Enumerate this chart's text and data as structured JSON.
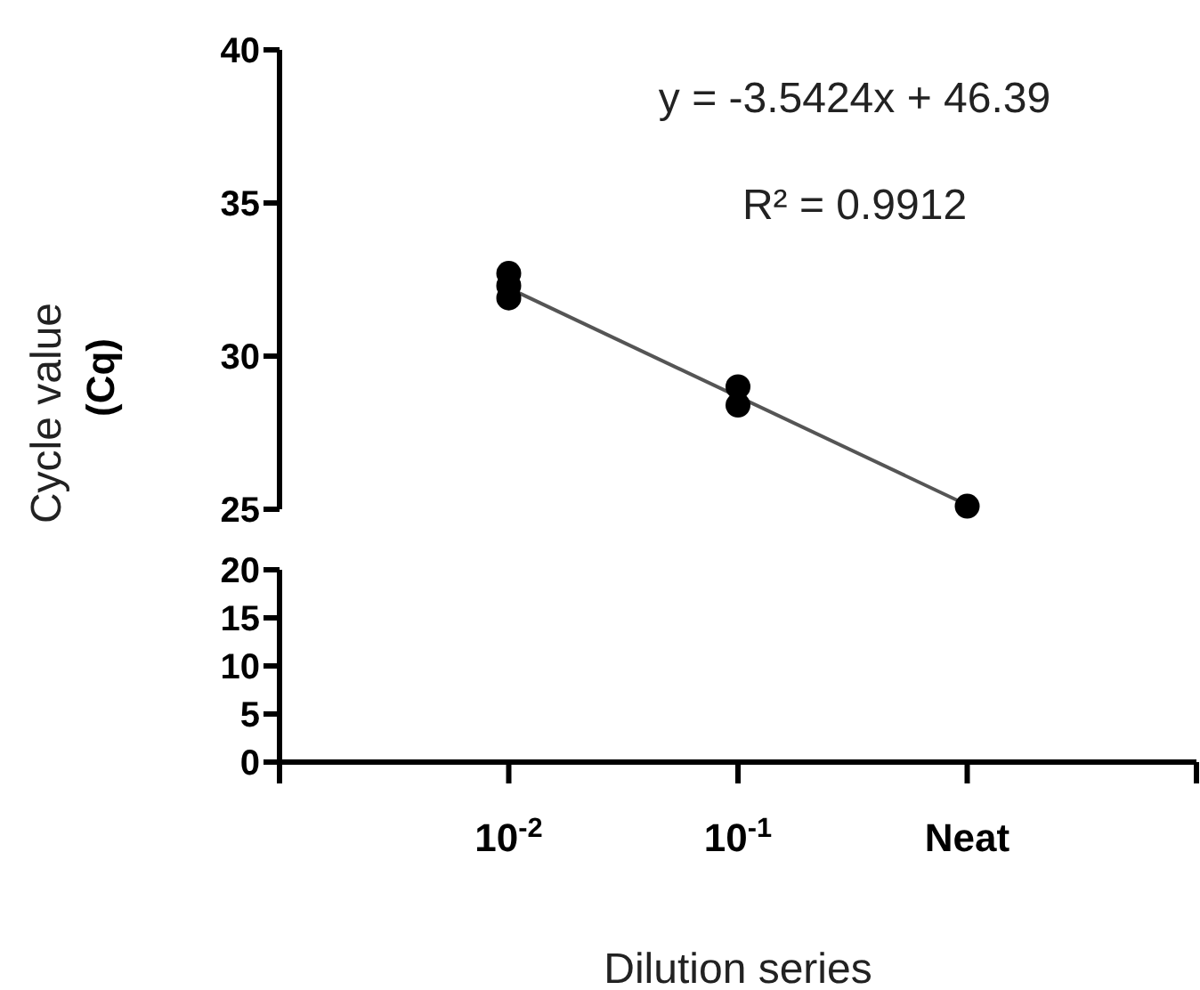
{
  "chart_data": [
    {
      "type": "scatter",
      "categories": [
        null,
        "10$^{-2}$",
        "10$^{-1}$",
        "Neat",
        null
      ],
      "ylim": [
        25,
        40
      ],
      "yticks": [
        25,
        30,
        35,
        40
      ],
      "tick_labels": "y",
      "marker": "circle",
      "grid": false,
      "legend": false,
      "annotations": [
        "y = -3.5424x + 46.39",
        "R² = 0.9912"
      ],
      "series": [
        {
          "type": "scatter",
          "color": "#000000",
          "x": [
            "10$^{-2}$",
            "10$^{-2}$",
            "10$^{-2}$",
            "10$^{-1}$",
            "10$^{-1}$",
            "Neat"
          ],
          "values": [
            32.7,
            32.3,
            31.9,
            29.0,
            28.4,
            25.1
          ]
        },
        {
          "type": "line",
          "color": "#555555",
          "marker": "none",
          "x": [
            "10$^{-2}$",
            "Neat"
          ],
          "values": [
            32.22,
            25.14
          ]
        }
      ]
    },
    {
      "type": "scatter",
      "categories": [
        null,
        "10$^{-2}$",
        "10$^{-1}$",
        "Neat",
        null
      ],
      "ylim": [
        0,
        20
      ],
      "yticks": [
        0,
        5,
        10,
        15,
        20
      ],
      "xlabel": "Dilution series",
      "ylabel": "Cycle value\n(Cq)",
      "grid": false,
      "legend": false
    }
  ]
}
